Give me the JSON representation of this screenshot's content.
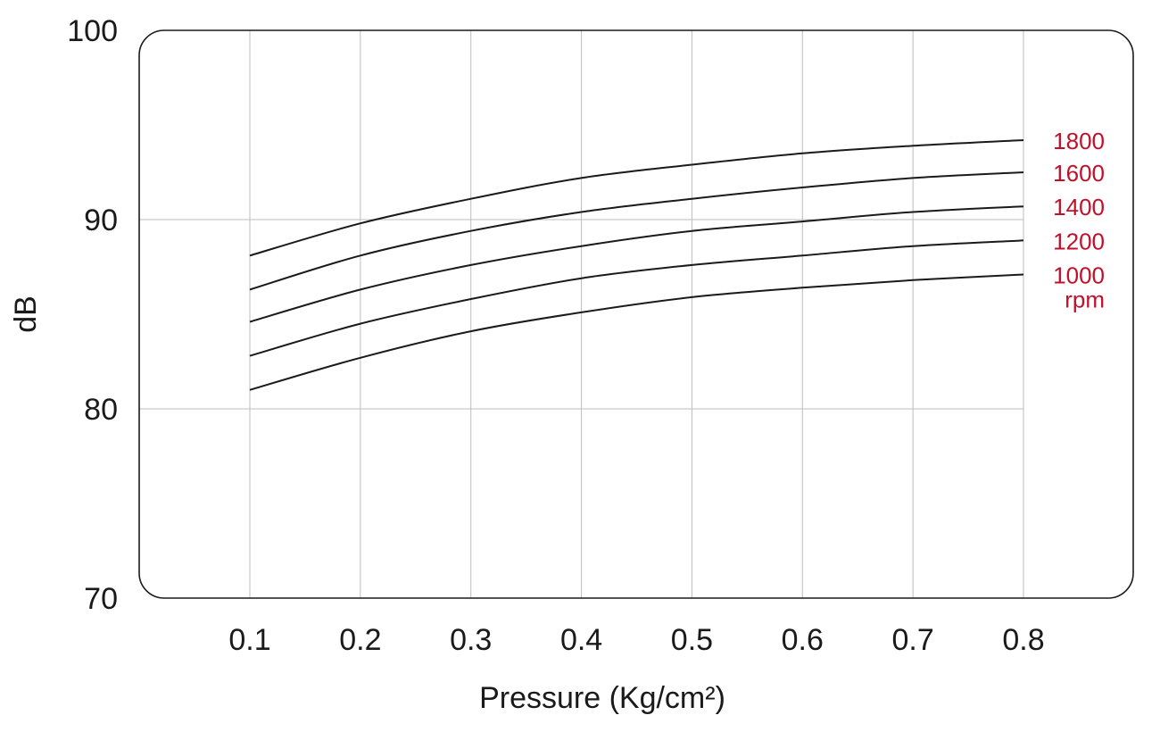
{
  "chart_data": {
    "type": "line",
    "xlabel": "Pressure (Kg/cm²)",
    "ylabel": "dB",
    "x": [
      0.1,
      0.2,
      0.3,
      0.4,
      0.5,
      0.6,
      0.7,
      0.8
    ],
    "x_tick_labels": [
      "0.1",
      "0.2",
      "0.3",
      "0.4",
      "0.5",
      "0.6",
      "0.7",
      "0.8"
    ],
    "y_tick_labels": [
      "100",
      "90",
      "80",
      "70"
    ],
    "y_ticks": [
      100,
      90,
      80,
      70
    ],
    "xlim": [
      0,
      0.9
    ],
    "ylim": [
      70,
      100
    ],
    "grid": true,
    "series": [
      {
        "name": "1800",
        "values": [
          88.1,
          89.8,
          91.1,
          92.2,
          92.9,
          93.5,
          93.9,
          94.2
        ]
      },
      {
        "name": "1600",
        "values": [
          86.3,
          88.1,
          89.4,
          90.4,
          91.1,
          91.7,
          92.2,
          92.5
        ]
      },
      {
        "name": "1400",
        "values": [
          84.6,
          86.3,
          87.6,
          88.6,
          89.4,
          89.9,
          90.4,
          90.7
        ]
      },
      {
        "name": "1200",
        "values": [
          82.8,
          84.5,
          85.8,
          86.9,
          87.6,
          88.1,
          88.6,
          88.9
        ]
      },
      {
        "name": "1000",
        "values": [
          81.0,
          82.7,
          84.1,
          85.1,
          85.9,
          86.4,
          86.8,
          87.1
        ]
      }
    ],
    "series_unit_label": "rpm",
    "colors": {
      "curves": "#1a1a1a",
      "labels": "#c0102a",
      "grid": "#bdbdbd"
    }
  }
}
